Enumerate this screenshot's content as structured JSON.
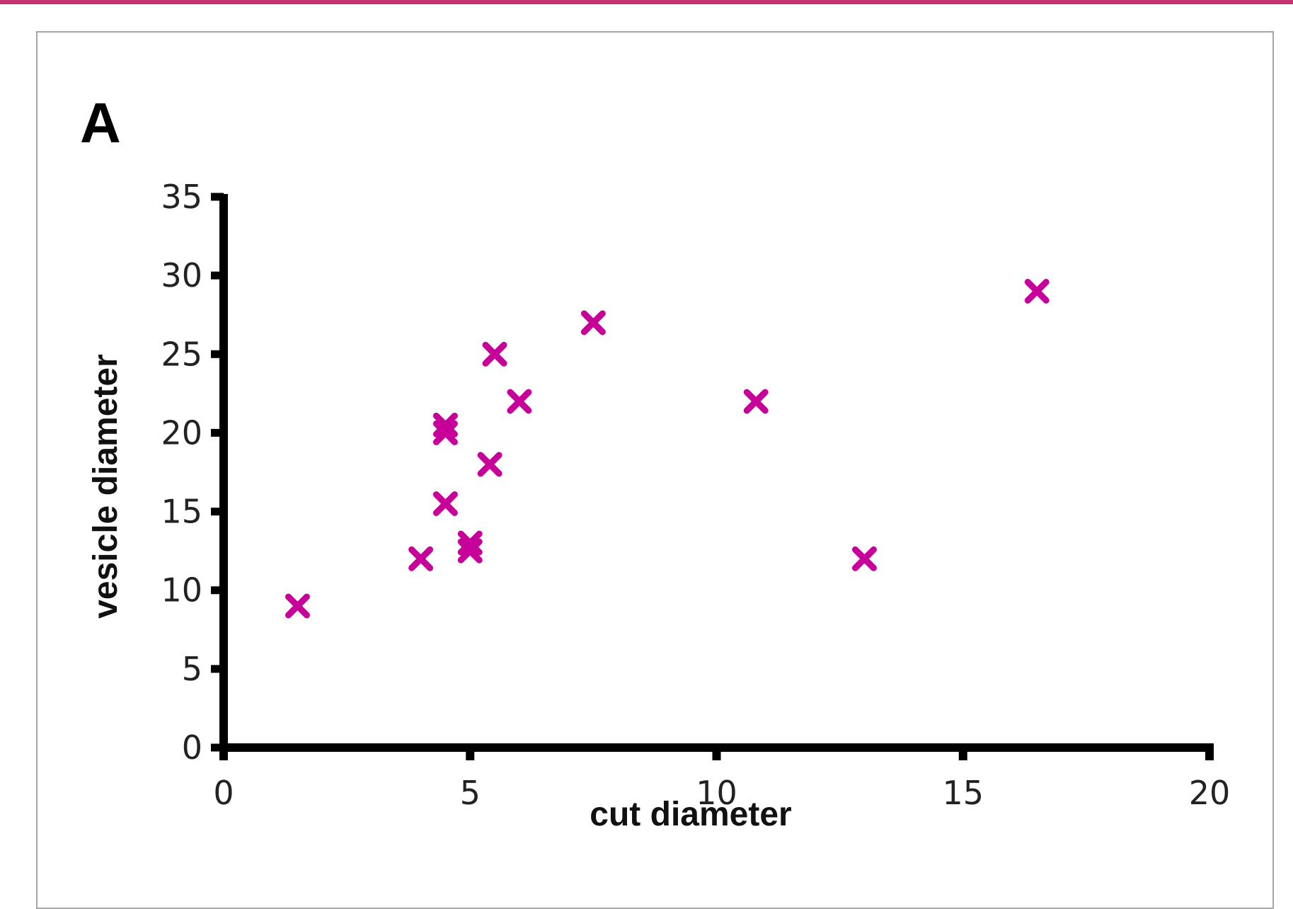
{
  "colors": {
    "marker": "#c8009a",
    "axis": "#000000",
    "frame": "#a6a6a6",
    "top_rule": "#c4356e"
  },
  "chart_data": {
    "type": "scatter",
    "panel_label": "A",
    "xlabel": "cut diameter",
    "ylabel": "vesicle diameter",
    "xlim": [
      0,
      20
    ],
    "ylim": [
      0,
      35
    ],
    "x_ticks": [
      0,
      5,
      10,
      15,
      20
    ],
    "y_ticks": [
      0,
      5,
      10,
      15,
      20,
      25,
      30,
      35
    ],
    "grid": false,
    "legend": "none",
    "marker": "x",
    "series": [
      {
        "points": [
          {
            "x": 1.5,
            "y": 9
          },
          {
            "x": 4.0,
            "y": 12
          },
          {
            "x": 4.5,
            "y": 15.5
          },
          {
            "x": 4.5,
            "y": 20
          },
          {
            "x": 4.5,
            "y": 20.5
          },
          {
            "x": 5.0,
            "y": 12.5
          },
          {
            "x": 5.0,
            "y": 13
          },
          {
            "x": 5.4,
            "y": 18
          },
          {
            "x": 5.5,
            "y": 25
          },
          {
            "x": 6.0,
            "y": 22
          },
          {
            "x": 7.5,
            "y": 27
          },
          {
            "x": 10.8,
            "y": 22
          },
          {
            "x": 13.0,
            "y": 12
          },
          {
            "x": 16.5,
            "y": 29
          }
        ]
      }
    ]
  }
}
